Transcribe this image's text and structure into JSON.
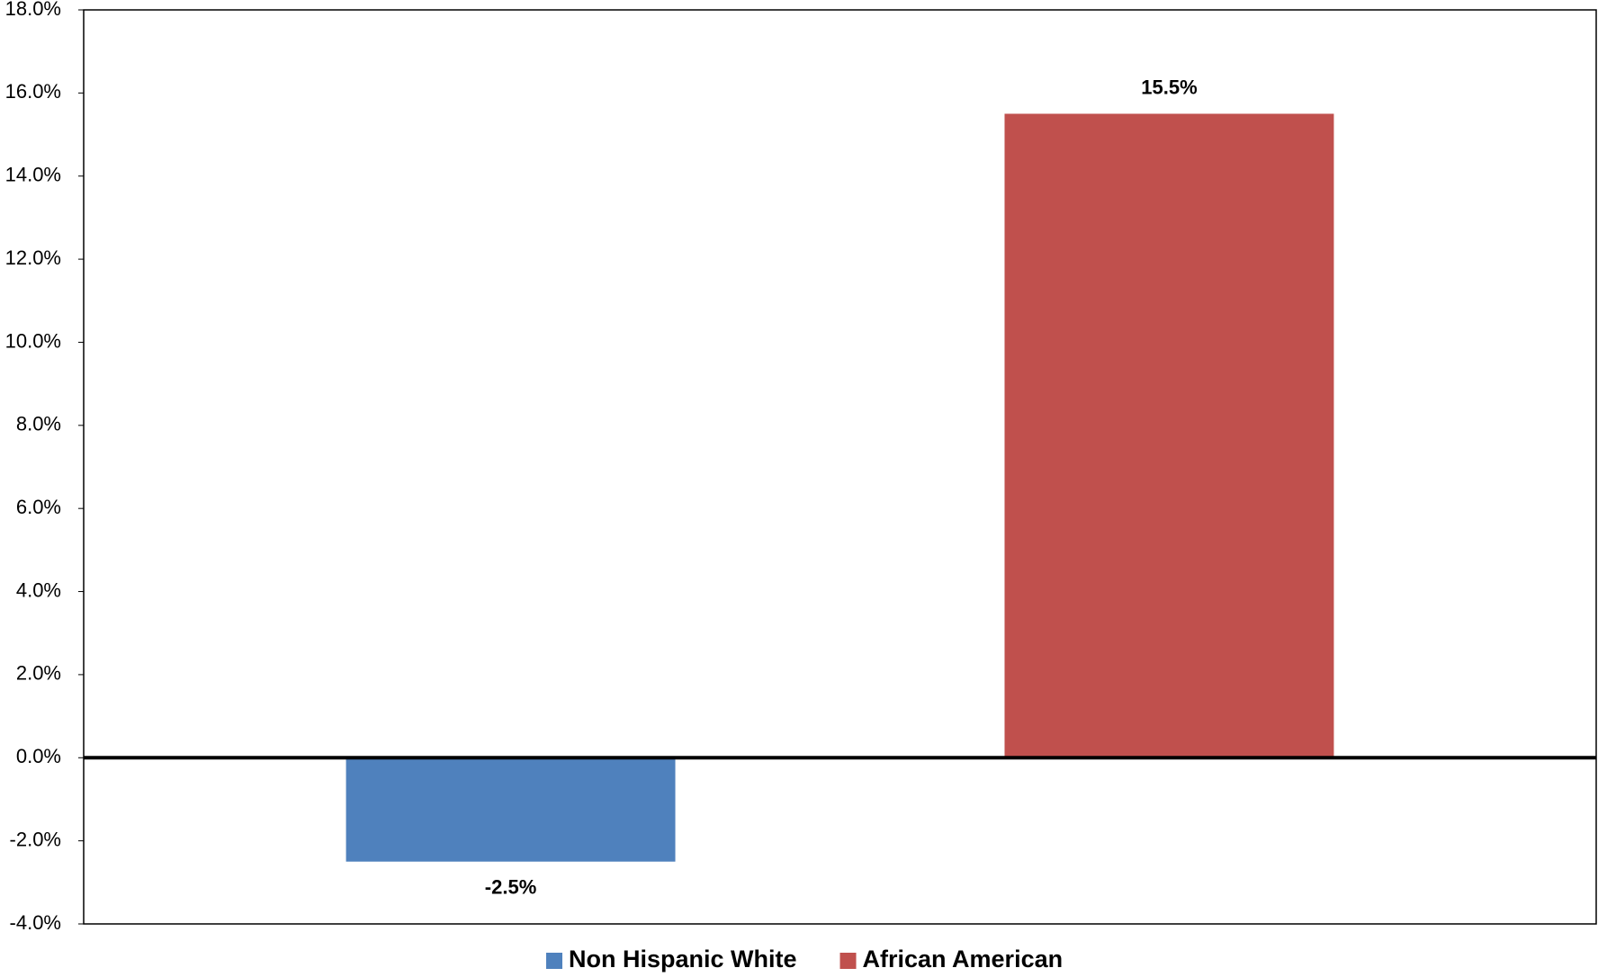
{
  "chart_data": {
    "type": "bar",
    "series": [
      {
        "name": "Non Hispanic White",
        "color": "#4f81bd",
        "values": [
          -2.5
        ],
        "value_labels": [
          "-2.5%"
        ]
      },
      {
        "name": "African American",
        "color": "#c0504d",
        "values": [
          15.5
        ],
        "value_labels": [
          "15.5%"
        ]
      }
    ],
    "ylim": [
      -4,
      18
    ],
    "yticks": [
      {
        "value": -4,
        "label": "-4.0%"
      },
      {
        "value": -2,
        "label": "-2.0%"
      },
      {
        "value": 0,
        "label": "0.0%"
      },
      {
        "value": 2,
        "label": "2.0%"
      },
      {
        "value": 4,
        "label": "4.0%"
      },
      {
        "value": 6,
        "label": "6.0%"
      },
      {
        "value": 8,
        "label": "8.0%"
      },
      {
        "value": 10,
        "label": "10.0%"
      },
      {
        "value": 12,
        "label": "12.0%"
      },
      {
        "value": 14,
        "label": "14.0%"
      },
      {
        "value": 16,
        "label": "16.0%"
      },
      {
        "value": 18,
        "label": "18.0%"
      }
    ],
    "grid": false,
    "legend": "bottom"
  }
}
